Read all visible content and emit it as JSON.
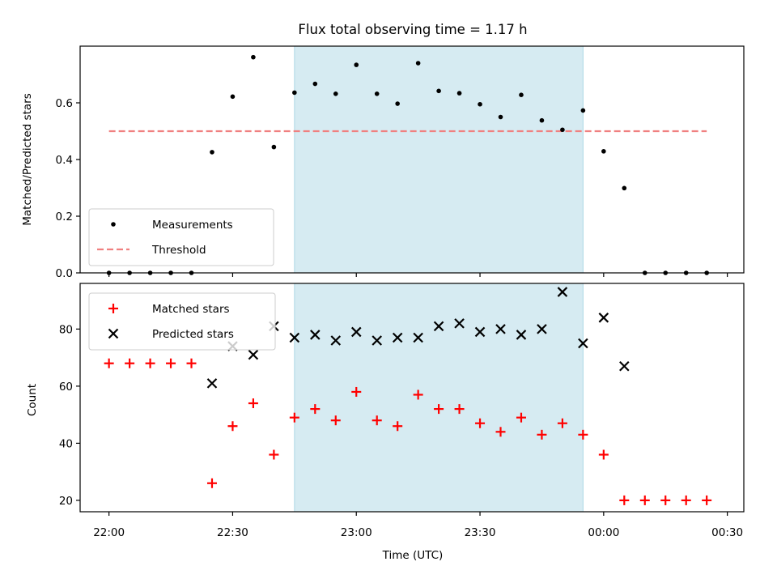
{
  "chart_data": {
    "type": "scatter",
    "title": "Flux total observing time = 1.17 h",
    "xlabel": "Time (UTC)",
    "x_tick_labels": [
      "22:00",
      "22:30",
      "23:00",
      "23:30",
      "00:00",
      "00:30"
    ],
    "x_ticks_min": [
      0,
      30,
      60,
      90,
      120,
      150
    ],
    "xlim_min": [
      -7,
      154
    ],
    "shaded_interval_min": [
      45,
      115
    ],
    "shade_color": "#add8e6",
    "panels": [
      {
        "ylabel": "Matched/Predicted stars",
        "ylim": [
          0,
          0.8
        ],
        "y_ticks": [
          0.0,
          0.2,
          0.4,
          0.6
        ],
        "y_tick_labels": [
          "0.0",
          "0.2",
          "0.4",
          "0.6"
        ],
        "series": [
          {
            "name": "Measurements",
            "marker": "dot",
            "color": "#000000",
            "x": [
              0,
              5,
              10,
              15,
              20,
              25,
              30,
              35,
              40,
              45,
              50,
              55,
              60,
              65,
              70,
              75,
              80,
              85,
              90,
              95,
              100,
              105,
              110,
              115,
              120,
              125,
              130,
              135,
              140,
              145
            ],
            "y": [
              0.0,
              0.0,
              0.0,
              0.0,
              0.0,
              0.426,
              0.622,
              0.761,
              0.444,
              0.636,
              0.667,
              0.632,
              0.734,
              0.632,
              0.597,
              0.74,
              0.642,
              0.634,
              0.595,
              0.55,
              0.628,
              0.538,
              0.505,
              0.573,
              0.429,
              0.299,
              0.0,
              0.0,
              0.0,
              0.0
            ]
          }
        ],
        "threshold": {
          "name": "Threshold",
          "value": 0.5,
          "x_range": [
            0,
            145
          ],
          "color": "#f08080"
        }
      },
      {
        "ylabel": "Count",
        "ylim": [
          16,
          96
        ],
        "y_ticks": [
          20,
          40,
          60,
          80
        ],
        "y_tick_labels": [
          "20",
          "40",
          "60",
          "80"
        ],
        "series": [
          {
            "name": "Matched stars",
            "marker": "plus",
            "color": "#ff0000",
            "x": [
              0,
              5,
              10,
              15,
              20,
              25,
              30,
              35,
              40,
              45,
              50,
              55,
              60,
              65,
              70,
              75,
              80,
              85,
              90,
              95,
              100,
              105,
              110,
              115,
              120,
              125,
              130,
              135,
              140,
              145
            ],
            "y": [
              68,
              68,
              68,
              68,
              68,
              26,
              46,
              54,
              36,
              49,
              52,
              48,
              58,
              48,
              46,
              57,
              52,
              52,
              47,
              44,
              49,
              43,
              47,
              43,
              36,
              20,
              20,
              20,
              20,
              20
            ]
          },
          {
            "name": "Predicted stars",
            "marker": "x",
            "color": "#000000",
            "x": [
              25,
              30,
              35,
              40,
              45,
              50,
              55,
              60,
              65,
              70,
              75,
              80,
              85,
              90,
              95,
              100,
              105,
              110,
              115,
              120,
              125
            ],
            "y": [
              61,
              74,
              71,
              81,
              77,
              78,
              76,
              79,
              76,
              77,
              77,
              81,
              82,
              79,
              80,
              78,
              80,
              93,
              75,
              84,
              67
            ]
          }
        ]
      }
    ],
    "legend_placement": [
      "lower-left",
      "upper-left"
    ],
    "grid": false
  }
}
